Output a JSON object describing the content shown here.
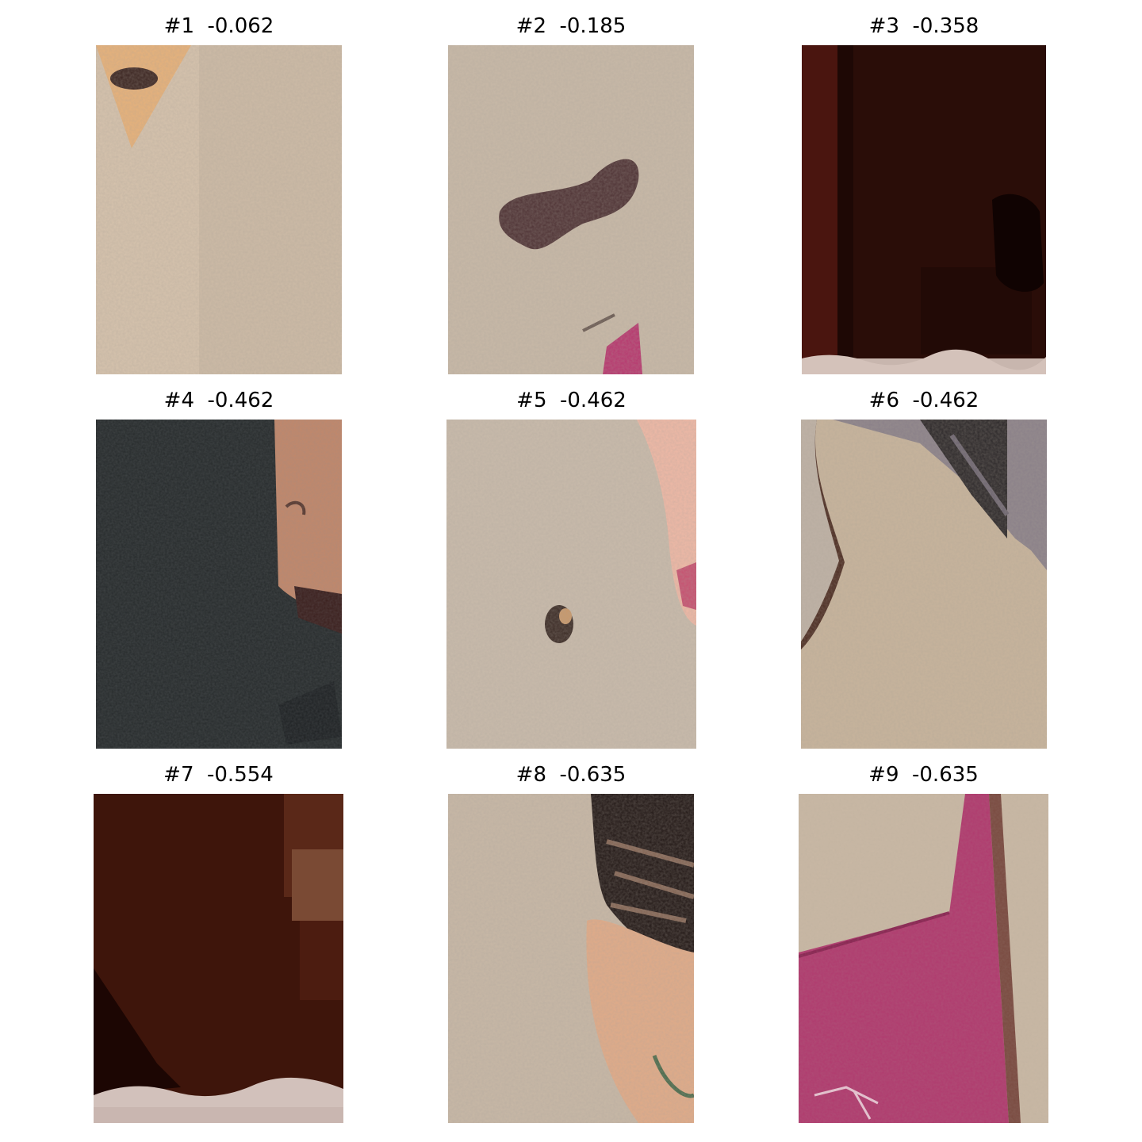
{
  "patches": [
    {
      "title": "#1  -0.062"
    },
    {
      "title": "#2  -0.185"
    },
    {
      "title": "#3  -0.358"
    },
    {
      "title": "#4  -0.462"
    },
    {
      "title": "#5  -0.462"
    },
    {
      "title": "#6  -0.462"
    },
    {
      "title": "#7  -0.554"
    },
    {
      "title": "#8  -0.635"
    },
    {
      "title": "#9  -0.635"
    }
  ]
}
